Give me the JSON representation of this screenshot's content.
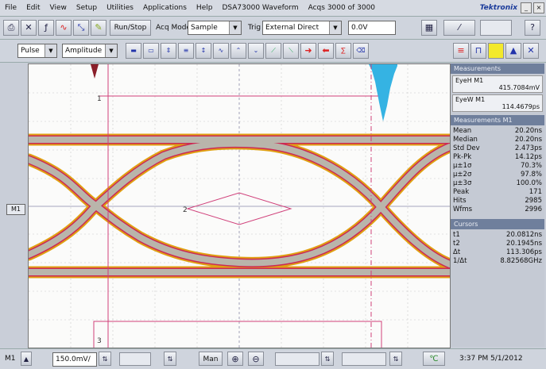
{
  "menu": {
    "items": [
      "File",
      "Edit",
      "View",
      "Setup",
      "Utilities",
      "Applications",
      "Help"
    ],
    "model": "DSA73000 Waveform",
    "acq": "Acqs 3000 of 3000",
    "brand": "Tektronix"
  },
  "toolbar": {
    "run_stop": "Run/Stop",
    "acq_mode_label": "Acq Mode",
    "acq_mode_value": "Sample",
    "trig_label": "Trig",
    "trig_value": "External Direct",
    "level_value": "0.0V"
  },
  "toolbar2": {
    "select1": "Pulse",
    "select2": "Amplitude"
  },
  "eye_chart": {
    "cursor_labels": [
      "1",
      "2",
      "3"
    ]
  },
  "measurements": {
    "header1": "Measurements",
    "eyeh_label": "EyeH M1",
    "eyeh_value": "415.7084mV",
    "eyew_label": "EyeW M1",
    "eyew_value": "114.4679ps",
    "header2": "Measurements M1",
    "stats": [
      {
        "label": "Mean",
        "value": "20.20ns"
      },
      {
        "label": "Median",
        "value": "20.20ns"
      },
      {
        "label": "Std Dev",
        "value": "2.473ps"
      },
      {
        "label": "Pk-Pk",
        "value": "14.12ps"
      },
      {
        "label": "μ±1σ",
        "value": "70.3%"
      },
      {
        "label": "μ±2σ",
        "value": "97.8%"
      },
      {
        "label": "μ±3σ",
        "value": "100.0%"
      },
      {
        "label": "Peak",
        "value": "171"
      },
      {
        "label": "Hits",
        "value": "2985"
      },
      {
        "label": "Wfms",
        "value": "2996"
      }
    ],
    "header3": "Cursors",
    "cursors": [
      {
        "label": "t1",
        "value": "20.0812ns"
      },
      {
        "label": "t2",
        "value": "20.1945ns"
      },
      {
        "label": "Δt",
        "value": "113.306ps"
      },
      {
        "label": "1/Δt",
        "value": "8.82568GHz"
      }
    ]
  },
  "statusbar": {
    "channel": "M1",
    "scale": "150.0mV/",
    "mode": "Man",
    "datetime": "3:37 PM 5/1/2012"
  },
  "channel_marker": "M1"
}
